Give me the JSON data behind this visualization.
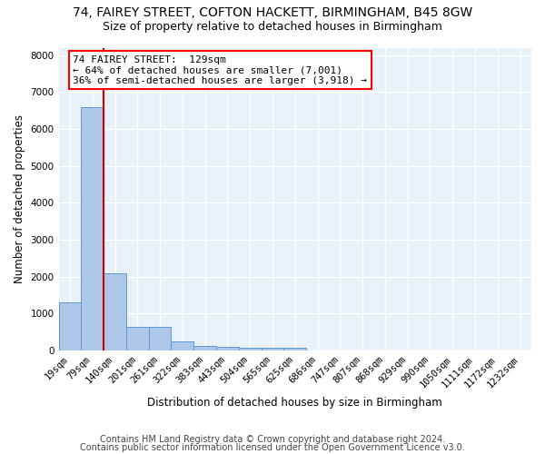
{
  "title1": "74, FAIREY STREET, COFTON HACKETT, BIRMINGHAM, B45 8GW",
  "title2": "Size of property relative to detached houses in Birmingham",
  "xlabel": "Distribution of detached houses by size in Birmingham",
  "ylabel": "Number of detached properties",
  "footer1": "Contains HM Land Registry data © Crown copyright and database right 2024.",
  "footer2": "Contains public sector information licensed under the Open Government Licence v3.0.",
  "bin_labels": [
    "19sqm",
    "79sqm",
    "140sqm",
    "201sqm",
    "261sqm",
    "322sqm",
    "383sqm",
    "443sqm",
    "504sqm",
    "565sqm",
    "625sqm",
    "686sqm",
    "747sqm",
    "807sqm",
    "868sqm",
    "929sqm",
    "990sqm",
    "1050sqm",
    "1111sqm",
    "1172sqm",
    "1232sqm"
  ],
  "bar_values": [
    1310,
    6600,
    2090,
    640,
    640,
    250,
    130,
    90,
    60,
    60,
    60,
    0,
    0,
    0,
    0,
    0,
    0,
    0,
    0,
    0,
    0
  ],
  "bar_color": "#aec6e8",
  "bar_edge_color": "#5b9bd5",
  "vline_color": "#cc0000",
  "annotation_line1": "74 FAIREY STREET:  129sqm",
  "annotation_line2": "← 64% of detached houses are smaller (7,001)",
  "annotation_line3": "36% of semi-detached houses are larger (3,918) →",
  "ylim": [
    0,
    8200
  ],
  "yticks": [
    0,
    1000,
    2000,
    3000,
    4000,
    5000,
    6000,
    7000,
    8000
  ],
  "bg_color": "#e8f0f8",
  "grid_color": "#ffffff",
  "title1_fontsize": 10,
  "title2_fontsize": 9,
  "axis_label_fontsize": 8.5,
  "tick_fontsize": 7.5,
  "footer_fontsize": 7
}
